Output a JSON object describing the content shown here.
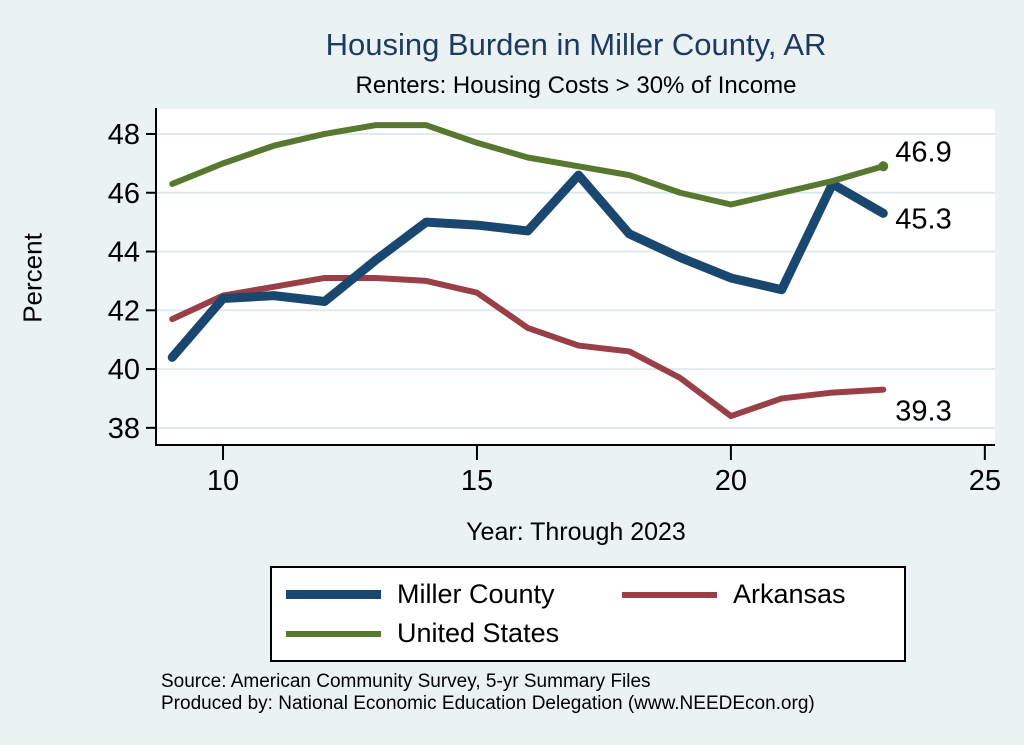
{
  "title": "Housing Burden in Miller County, AR",
  "subtitle": "Renters: Housing Costs > 30% of Income",
  "colors": {
    "background": "#eaf2f3",
    "plot_background": "#ffffff",
    "gridline": "#dfeaef",
    "axis": "#000000",
    "title_text": "#1f3a60",
    "miller_county": "#1a476f",
    "arkansas": "#993f47",
    "united_states": "#587830"
  },
  "chart_data": {
    "type": "line",
    "title": "Housing Burden in Miller County, AR",
    "subtitle": "Renters: Housing Costs > 30% of Income",
    "xlabel": "Year: Through 2023",
    "ylabel": "Percent",
    "grid": "horizontal",
    "x": [
      2009,
      2010,
      2011,
      2012,
      2013,
      2014,
      2015,
      2016,
      2017,
      2018,
      2019,
      2020,
      2021,
      2022,
      2023
    ],
    "series": [
      {
        "name": "Miller County",
        "color": "#1a476f",
        "width": 9,
        "end_label": "45.3",
        "end_dot": false,
        "values": [
          40.4,
          42.4,
          42.5,
          42.3,
          43.7,
          45.0,
          44.9,
          44.7,
          46.6,
          44.6,
          43.8,
          43.1,
          42.7,
          46.3,
          45.3
        ]
      },
      {
        "name": "Arkansas",
        "color": "#993f47",
        "width": 6,
        "end_label": "39.3",
        "end_dot": false,
        "values": [
          41.7,
          42.5,
          42.8,
          43.1,
          43.1,
          43.0,
          42.6,
          41.4,
          40.8,
          40.6,
          39.7,
          38.4,
          39.0,
          39.2,
          39.3
        ]
      },
      {
        "name": "United States",
        "color": "#587830",
        "width": 6,
        "end_label": "46.9",
        "end_dot": true,
        "values": [
          46.3,
          47.0,
          47.6,
          48.0,
          48.3,
          48.3,
          47.7,
          47.2,
          46.9,
          46.6,
          46.0,
          45.6,
          46.0,
          46.4,
          46.9
        ]
      }
    ],
    "x_ticks": [
      {
        "value": 2010,
        "label": "10"
      },
      {
        "value": 2015,
        "label": "15"
      },
      {
        "value": 2020,
        "label": "20"
      },
      {
        "value": 2025,
        "label": "25"
      }
    ],
    "y_ticks": [
      38,
      40,
      42,
      44,
      46,
      48
    ],
    "xlim": [
      2008.7,
      2025.2
    ],
    "ylim": [
      37.45,
      48.85
    ],
    "legend_position": "bottom"
  },
  "legend": {
    "items": [
      {
        "label": "Miller County"
      },
      {
        "label": "Arkansas"
      },
      {
        "label": "United States"
      }
    ]
  },
  "footer": {
    "line1": "Source: American Community Survey, 5-yr Summary Files",
    "line2": "Produced by: National Economic Education Delegation (www.NEEDEcon.org)"
  }
}
